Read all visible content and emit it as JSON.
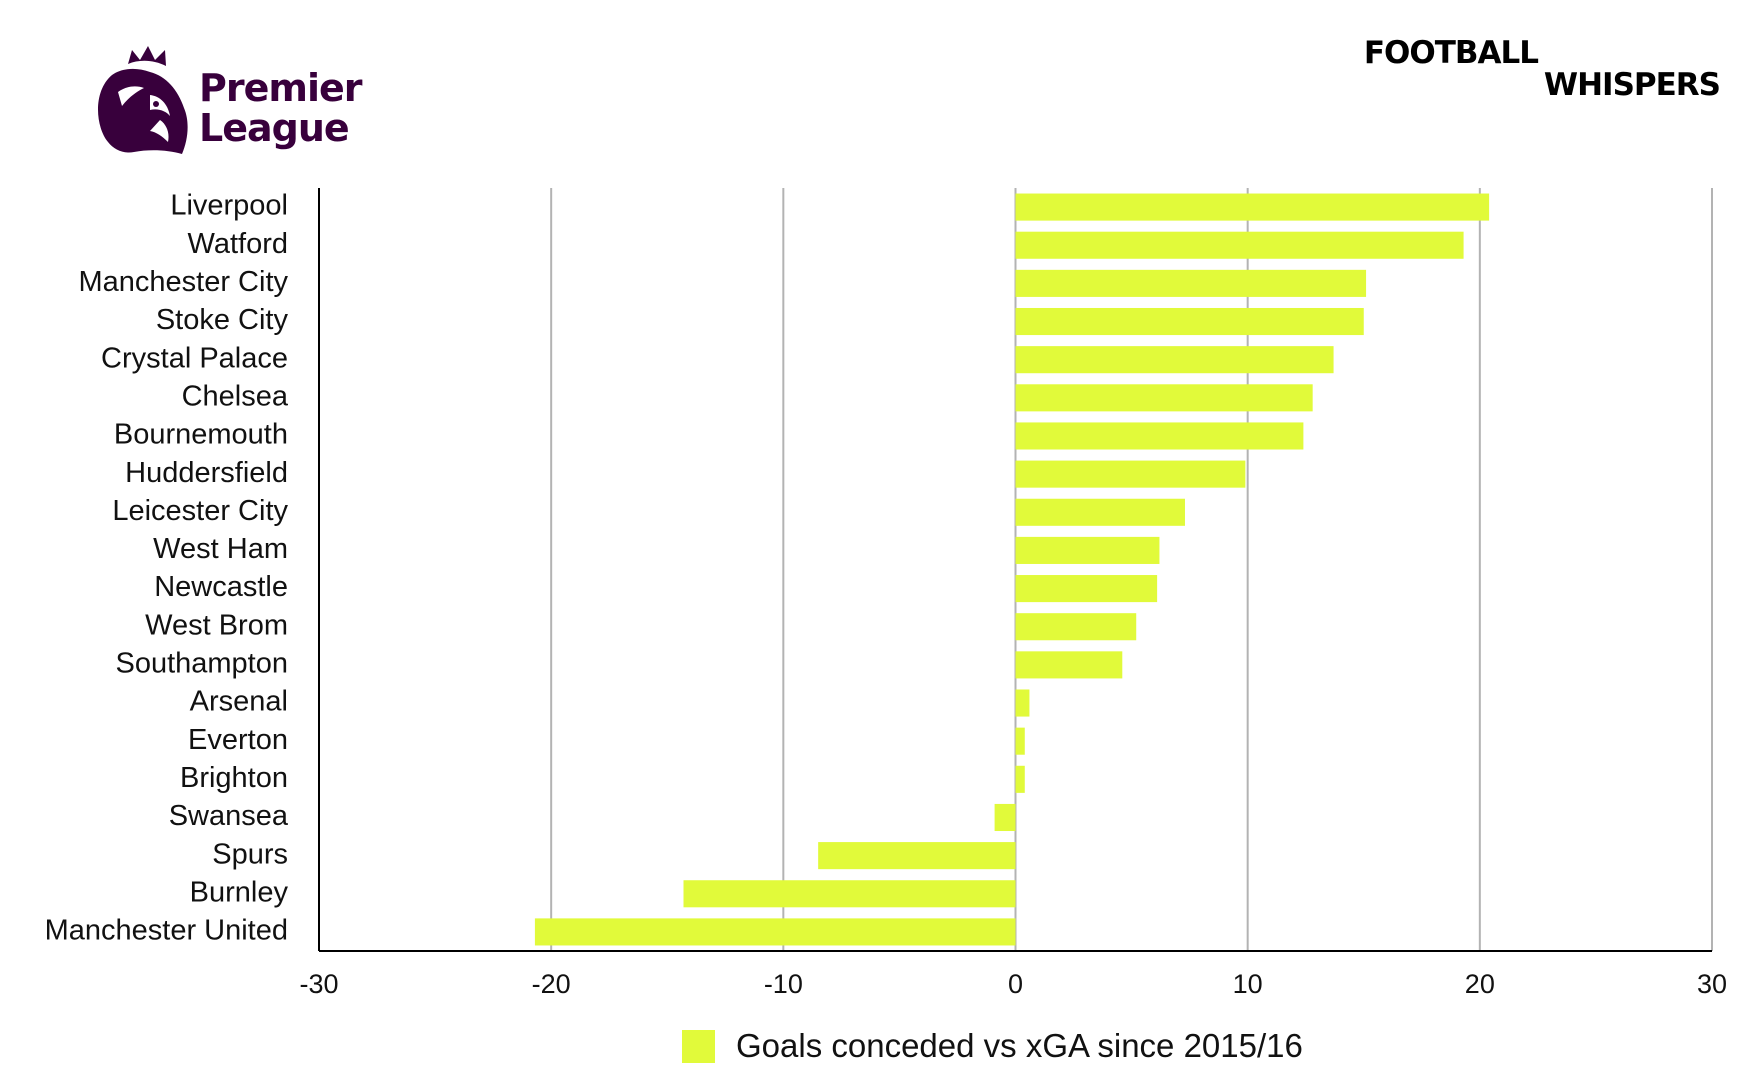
{
  "branding": {
    "league_logo_line1": "Premier",
    "league_logo_line2": "League",
    "publisher_logo_line1": "FOOTBALL",
    "publisher_logo_line2": "WHISPERS",
    "league_color": "#38003c"
  },
  "chart_data": {
    "type": "bar",
    "orientation": "horizontal",
    "title": "",
    "xlabel": "",
    "ylabel": "",
    "xlim": [
      -30,
      30
    ],
    "xticks": [
      -30,
      -20,
      -10,
      0,
      10,
      20,
      30
    ],
    "grid": true,
    "bar_color": "#e1fa3a",
    "legend": {
      "placement": "bottom-center",
      "label": "Goals conceded vs xGA since 2015/16"
    },
    "categories": [
      "Liverpool",
      "Watford",
      "Manchester City",
      "Stoke City",
      "Crystal Palace",
      "Chelsea",
      "Bournemouth",
      "Huddersfield",
      "Leicester City",
      "West Ham",
      "Newcastle",
      "West Brom",
      "Southampton",
      "Arsenal",
      "Everton",
      "Brighton",
      "Swansea",
      "Spurs",
      "Burnley",
      "Manchester United"
    ],
    "values": [
      20.4,
      19.3,
      15.1,
      15.0,
      13.7,
      12.8,
      12.4,
      9.9,
      7.3,
      6.2,
      6.1,
      5.2,
      4.6,
      0.6,
      0.4,
      0.4,
      -0.9,
      -8.5,
      -14.3,
      -20.7
    ]
  }
}
